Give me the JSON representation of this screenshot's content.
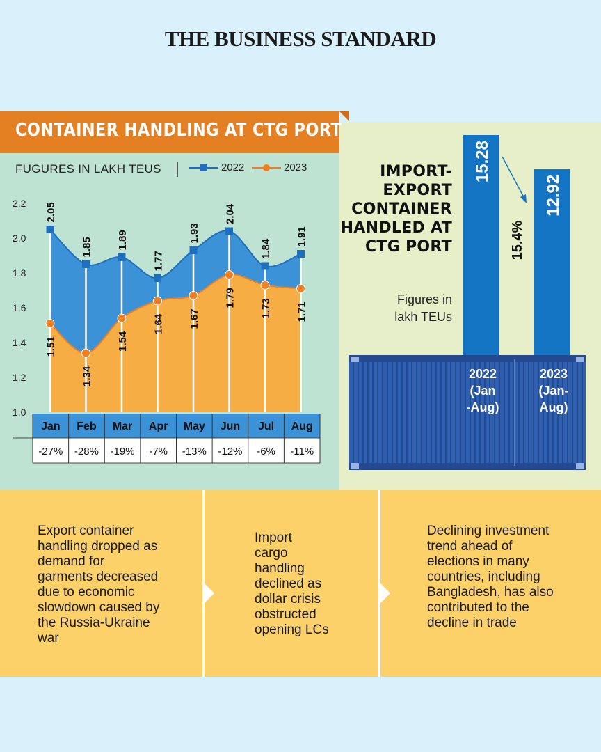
{
  "masthead": "THE BUSINESS STANDARD",
  "title": "CONTAINER HANDLING AT CTG PORT",
  "figures_label": "FUGURES IN LAKH TEUS",
  "colors": {
    "series_2022": "#1f6fbf",
    "series_2023": "#f07f22",
    "area_2022": "#3b92d6",
    "area_2023": "#f6ad44",
    "banner": "#e47f22",
    "bars": "#1474c4"
  },
  "chart_data": [
    {
      "type": "area",
      "categories": [
        "Jan",
        "Feb",
        "Mar",
        "Apr",
        "May",
        "Jun",
        "Jul",
        "Aug"
      ],
      "series": [
        {
          "name": "2022",
          "values": [
            2.05,
            1.85,
            1.89,
            1.77,
            1.93,
            2.04,
            1.84,
            1.91
          ],
          "labels": [
            "2.05",
            "1.85",
            "1.89",
            "1.77",
            "1.93",
            "2.04",
            "1.84",
            "1.91"
          ]
        },
        {
          "name": "2023",
          "values": [
            1.51,
            1.34,
            1.54,
            1.64,
            1.67,
            1.79,
            1.73,
            1.71
          ],
          "labels": [
            "1.51",
            "1.34",
            "1.54",
            "1.64",
            "1.67",
            "1.79",
            "1.73",
            "1.71"
          ]
        }
      ],
      "yticks": [
        "2.2",
        "2.0",
        "1.8",
        "1.6",
        "1.4",
        "1.2",
        "1.0"
      ],
      "ylim": [
        1.0,
        2.2
      ],
      "changes": [
        "-27%",
        "-28%",
        "-19%",
        "-7%",
        "-13%",
        "-12%",
        "-6%",
        "-11%"
      ],
      "legend_position": "top-right"
    },
    {
      "type": "bar",
      "title": "IMPORT-EXPORT CONTAINER HANDLED AT CTG PORT",
      "subtitle": "Figures in lakh TEUs",
      "categories": [
        "2022 (Jan -Aug)",
        "2023 (Jan-Aug)"
      ],
      "category_lines": [
        [
          "2022",
          "(Jan",
          "-Aug)"
        ],
        [
          "2023",
          "(Jan-",
          "Aug)"
        ]
      ],
      "values": [
        15.28,
        12.92
      ],
      "value_labels": [
        "15.28",
        "12.92"
      ],
      "change_label": "15.4%"
    }
  ],
  "bar_heading_lines": [
    "IMPORT-",
    "EXPORT",
    "CONTAINER",
    "HANDLED AT",
    "CTG PORT"
  ],
  "bar_sub_lines": [
    "Figures in",
    "lakh TEUs"
  ],
  "info": [
    {
      "lines": [
        "Export container",
        "handling dropped as",
        "demand for",
        "garments decreased",
        "due to economic",
        "slowdown caused by",
        "the Russia-Ukraine",
        "war"
      ]
    },
    {
      "lines": [
        "Import",
        "cargo",
        "handling",
        "declined as",
        "dollar crisis",
        "obstructed",
        "opening LCs"
      ]
    },
    {
      "lines": [
        "Declining investment",
        "trend ahead of",
        "elections in many",
        "countries, including",
        "Bangladesh, has also",
        "contributed to the",
        "decline in trade"
      ]
    }
  ]
}
